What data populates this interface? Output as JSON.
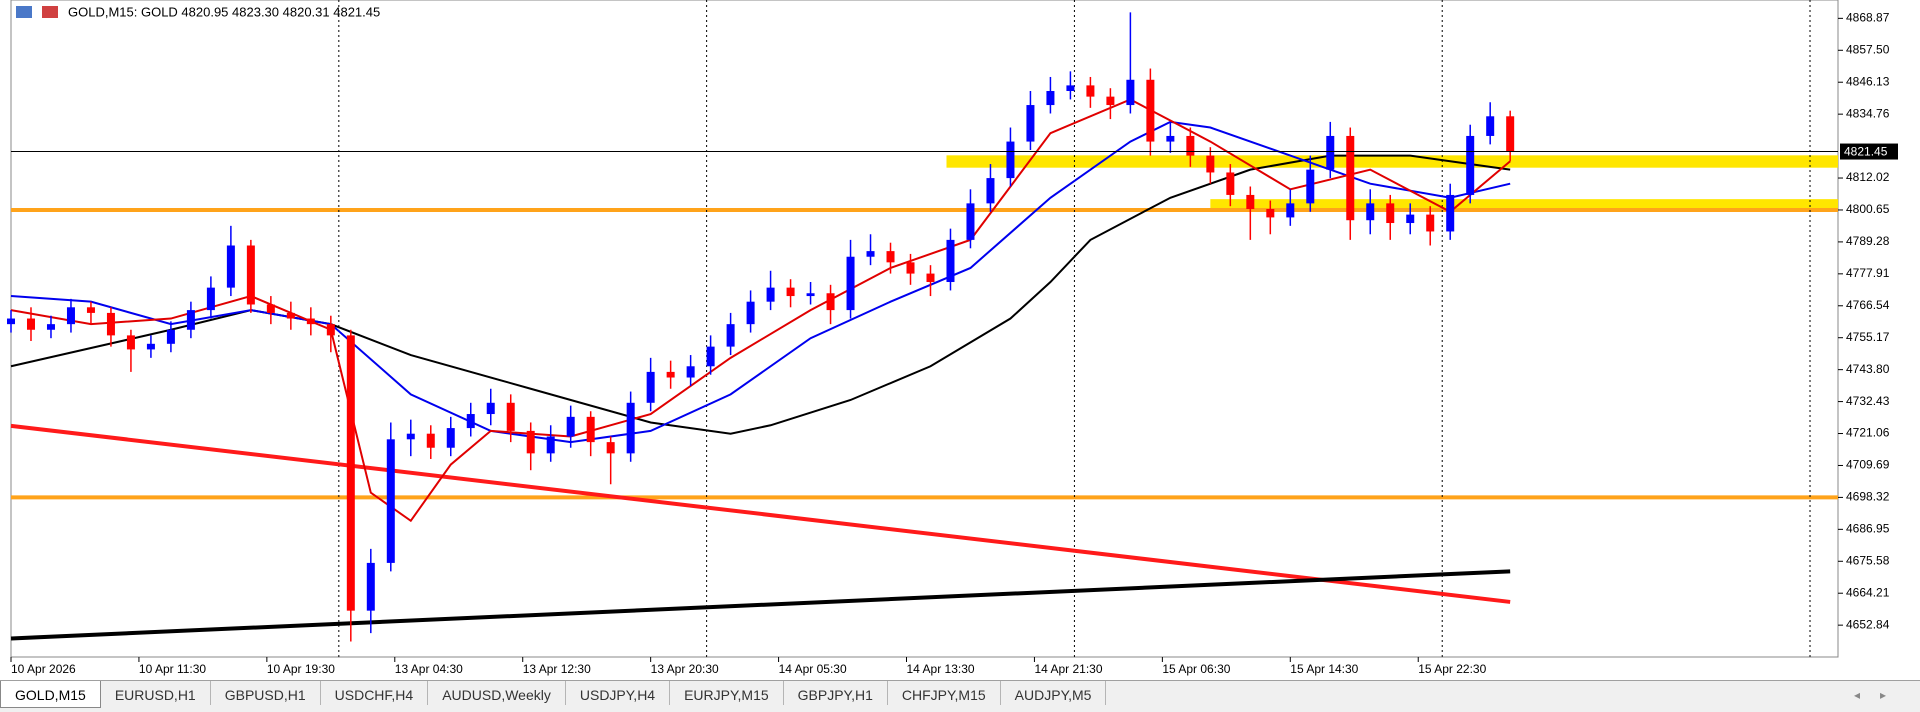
{
  "chart_data": {
    "type": "candlestick",
    "title": "GOLD,M15:  GOLD  4820.95 4823.30 4820.31 4821.45",
    "ylim": [
      4641.5,
      4875.4
    ],
    "yticks": [
      4868.87,
      {
        "value": 4857.5,
        "label": "4857.50"
      },
      4846.13,
      4834.76,
      4812.02,
      4800.65,
      4789.28,
      4777.91,
      4766.54,
      4755.17,
      {
        "value": 4743.8,
        "label": "4743.80"
      },
      4732.43,
      4721.06,
      4709.69,
      4698.32,
      4686.95,
      4675.58,
      4664.21,
      4652.84
    ],
    "xlim": [
      0,
      457
    ],
    "xticks": [
      {
        "value": 0,
        "label": "10 Apr 2026"
      },
      {
        "value": 32,
        "label": "10 Apr 11:30"
      },
      {
        "value": 64,
        "label": "10 Apr 19:30"
      },
      {
        "value": 96,
        "label": "13 Apr 04:30"
      },
      {
        "value": 128,
        "label": "13 Apr 12:30"
      },
      {
        "value": 160,
        "label": "13 Apr 20:30"
      },
      {
        "value": 192,
        "label": "14 Apr 05:30"
      },
      {
        "value": 224,
        "label": "14 Apr 13:30"
      },
      {
        "value": 256,
        "label": "14 Apr 21:30"
      },
      {
        "value": 288,
        "label": "15 Apr 06:30"
      },
      {
        "value": 320,
        "label": "15 Apr 14:30"
      },
      {
        "value": 352,
        "label": "15 Apr 22:30"
      }
    ],
    "separators": [
      82,
      174,
      266,
      358,
      450
    ],
    "up_color": "#0000ff",
    "down_color": "#ff0000",
    "x": [
      0,
      5,
      10,
      15,
      20,
      25,
      30,
      35,
      40,
      45,
      50,
      55,
      60,
      65,
      70,
      75,
      80,
      85,
      90,
      95,
      100,
      105,
      110,
      115,
      120,
      125,
      130,
      135,
      140,
      145,
      150,
      155,
      160,
      165,
      170,
      175,
      180,
      185,
      190,
      195,
      200,
      205,
      210,
      215,
      220,
      225,
      230,
      235,
      240,
      245,
      250,
      255,
      260,
      265,
      270,
      275,
      280,
      285,
      290,
      295,
      300,
      305,
      310,
      315,
      320,
      325,
      330,
      335,
      340,
      345,
      350,
      355,
      360,
      365,
      370,
      375
    ],
    "ohlc": [
      [
        4760,
        4765,
        4757,
        4762
      ],
      [
        4762,
        4766,
        4754,
        4758
      ],
      [
        4758,
        4763,
        4755,
        4760
      ],
      [
        4760,
        4769,
        4757,
        4766
      ],
      [
        4766,
        4768,
        4760,
        4764
      ],
      [
        4764,
        4766,
        4752,
        4756
      ],
      [
        4756,
        4758,
        4743,
        4751
      ],
      [
        4751,
        4756,
        4748,
        4753
      ],
      [
        4753,
        4761,
        4750,
        4758
      ],
      [
        4758,
        4768,
        4755,
        4765
      ],
      [
        4765,
        4777,
        4762,
        4773
      ],
      [
        4773,
        4795,
        4770,
        4788
      ],
      [
        4788,
        4790,
        4764,
        4767
      ],
      [
        4767,
        4770,
        4760,
        4764
      ],
      [
        4764,
        4768,
        4758,
        4762
      ],
      [
        4762,
        4766,
        4756,
        4760
      ],
      [
        4760,
        4763,
        4750,
        4756
      ],
      [
        4756,
        4758,
        4647,
        4658
      ],
      [
        4658,
        4680,
        4650,
        4675
      ],
      [
        4675,
        4725,
        4672,
        4719
      ],
      [
        4719,
        4726,
        4713,
        4721
      ],
      [
        4721,
        4724,
        4712,
        4716
      ],
      [
        4716,
        4727,
        4713,
        4723
      ],
      [
        4723,
        4732,
        4720,
        4728
      ],
      [
        4728,
        4737,
        4724,
        4732
      ],
      [
        4732,
        4735,
        4718,
        4722
      ],
      [
        4722,
        4725,
        4708,
        4714
      ],
      [
        4714,
        4724,
        4711,
        4720
      ],
      [
        4720,
        4731,
        4716,
        4727
      ],
      [
        4727,
        4729,
        4713,
        4718
      ],
      [
        4718,
        4720,
        4703,
        4714
      ],
      [
        4714,
        4736,
        4711,
        4732
      ],
      [
        4732,
        4748,
        4729,
        4743
      ],
      [
        4743,
        4747,
        4737,
        4741
      ],
      [
        4741,
        4749,
        4738,
        4745
      ],
      [
        4745,
        4756,
        4742,
        4752
      ],
      [
        4752,
        4764,
        4749,
        4760
      ],
      [
        4760,
        4772,
        4757,
        4768
      ],
      [
        4768,
        4779,
        4765,
        4773
      ],
      [
        4773,
        4776,
        4766,
        4770
      ],
      [
        4770,
        4775,
        4767,
        4771
      ],
      [
        4771,
        4774,
        4760,
        4765
      ],
      [
        4765,
        4790,
        4762,
        4784
      ],
      [
        4784,
        4792,
        4781,
        4786
      ],
      [
        4786,
        4789,
        4778,
        4782
      ],
      [
        4782,
        4785,
        4774,
        4778
      ],
      [
        4778,
        4781,
        4770,
        4775
      ],
      [
        4775,
        4794,
        4772,
        4790
      ],
      [
        4790,
        4808,
        4787,
        4803
      ],
      [
        4803,
        4817,
        4800,
        4812
      ],
      [
        4812,
        4830,
        4809,
        4825
      ],
      [
        4825,
        4843,
        4822,
        4838
      ],
      [
        4838,
        4848,
        4835,
        4843
      ],
      [
        4843,
        4850,
        4840,
        4845
      ],
      [
        4845,
        4848,
        4837,
        4841
      ],
      [
        4841,
        4844,
        4833,
        4838
      ],
      [
        4838,
        4871,
        4835,
        4847
      ],
      [
        4847,
        4851,
        4820,
        4825
      ],
      [
        4825,
        4832,
        4821,
        4827
      ],
      [
        4827,
        4830,
        4816,
        4820
      ],
      [
        4820,
        4823,
        4810,
        4814
      ],
      [
        4814,
        4817,
        4802,
        4806
      ],
      [
        4806,
        4809,
        4790,
        4801
      ],
      [
        4801,
        4804,
        4792,
        4798
      ],
      [
        4798,
        4808,
        4795,
        4803
      ],
      [
        4803,
        4820,
        4800,
        4815
      ],
      [
        4815,
        4832,
        4812,
        4827
      ],
      [
        4827,
        4830,
        4790,
        4797
      ],
      [
        4797,
        4808,
        4792,
        4803
      ],
      [
        4803,
        4806,
        4790,
        4796
      ],
      [
        4796,
        4803,
        4792,
        4799
      ],
      [
        4799,
        4802,
        4788,
        4793
      ],
      [
        4793,
        4810,
        4790,
        4806
      ],
      [
        4806,
        4831,
        4803,
        4827
      ],
      [
        4827,
        4839,
        4824,
        4834
      ],
      [
        4834,
        4836,
        4818,
        4821.45
      ]
    ],
    "indicators": [
      {
        "color": "#000000",
        "x": [
          0,
          40,
          60,
          80,
          100,
          130,
          160,
          180,
          190,
          210,
          230,
          250,
          260,
          270,
          290,
          310,
          330,
          350,
          370,
          375
        ],
        "values": [
          4745,
          4758,
          4765,
          4760,
          4749,
          4737,
          4725,
          4721,
          4724,
          4733,
          4745,
          4762,
          4775,
          4790,
          4805,
          4815,
          4820,
          4820,
          4816,
          4815
        ]
      },
      {
        "color": "#0000ee",
        "x": [
          0,
          20,
          40,
          60,
          80,
          100,
          120,
          140,
          160,
          180,
          200,
          220,
          240,
          260,
          280,
          290,
          300,
          320,
          340,
          360,
          375
        ],
        "values": [
          4770,
          4768,
          4760,
          4765,
          4760,
          4735,
          4722,
          4718,
          4722,
          4735,
          4755,
          4768,
          4780,
          4805,
          4825,
          4832,
          4830,
          4820,
          4810,
          4805,
          4810
        ]
      },
      {
        "color": "#e00000",
        "x": [
          0,
          20,
          40,
          60,
          80,
          90,
          100,
          110,
          120,
          140,
          160,
          180,
          200,
          220,
          240,
          260,
          280,
          300,
          320,
          340,
          360,
          375
        ],
        "values": [
          4765,
          4760,
          4762,
          4770,
          4758,
          4700,
          4690,
          4710,
          4722,
          4720,
          4728,
          4748,
          4765,
          4780,
          4790,
          4828,
          4840,
          4825,
          4808,
          4815,
          4800,
          4818
        ]
      }
    ],
    "zones": [
      {
        "from": 234,
        "low": 4815.7,
        "high": 4820.1
      },
      {
        "from": 300,
        "low": 4800.5,
        "high": 4804.5
      }
    ],
    "zone_color": "#ffe600",
    "levels": [
      4800.65,
      4698.32
    ],
    "level_color": "#ffa31a",
    "trendlines": [
      {
        "color": "#ff1a1a",
        "x": [
          0,
          375
        ],
        "values": [
          4723.8,
          4661.1
        ]
      },
      {
        "color": "#000000",
        "x": [
          0,
          375
        ],
        "values": [
          4648.1,
          4672.0
        ]
      }
    ],
    "current_price": 4821.45
  },
  "tabs": [
    "GOLD,M15",
    "EURUSD,H1",
    "GBPUSD,H1",
    "USDCHF,H4",
    "AUDUSD,Weekly",
    "USDJPY,H4",
    "EURJPY,M15",
    "GBPJPY,H1",
    "CHFJPY,M15",
    "AUDJPY,M5"
  ],
  "active_tab": 0
}
